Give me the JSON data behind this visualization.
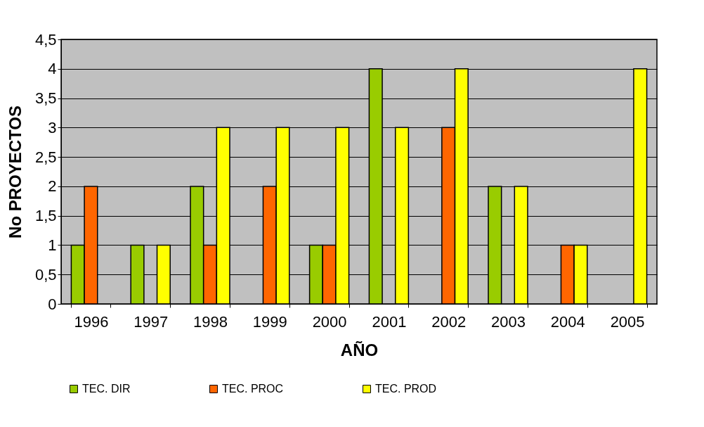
{
  "chart_data": {
    "type": "bar",
    "xlabel": "AÑO",
    "ylabel": "No PROYECTOS",
    "categories": [
      "1996",
      "1997",
      "1998",
      "1999",
      "2000",
      "2001",
      "2002",
      "2003",
      "2004",
      "2005"
    ],
    "series": [
      {
        "name": "TEC. DIR",
        "color": "#99cc00",
        "values": [
          1,
          1,
          2,
          null,
          1,
          4,
          null,
          2,
          null,
          null
        ]
      },
      {
        "name": "TEC. PROC",
        "color": "#ff6600",
        "values": [
          2,
          null,
          1,
          2,
          1,
          null,
          3,
          null,
          1,
          null
        ]
      },
      {
        "name": "TEC. PROD",
        "color": "#ffff00",
        "values": [
          null,
          1,
          3,
          3,
          3,
          3,
          4,
          2,
          1,
          4
        ]
      }
    ],
    "ylim": [
      0,
      4.5
    ],
    "yticks": [
      0,
      {
        "value": 0.5,
        "label": "0,5"
      },
      1,
      {
        "value": 1.5,
        "label": "1,5"
      },
      2,
      {
        "value": 2.5,
        "label": "2,5"
      },
      3,
      {
        "value": 3.5,
        "label": "3,5"
      },
      4,
      {
        "value": 4.5,
        "label": "4,5"
      }
    ],
    "grid": "y",
    "legend": "bottom"
  }
}
